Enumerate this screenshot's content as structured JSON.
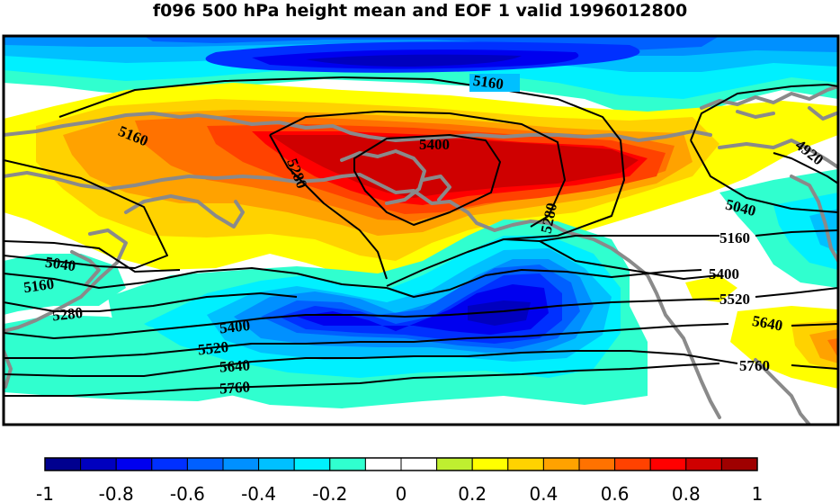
{
  "title": "f096 500 hPa height mean and EOF 1 valid 1996012800",
  "contour_labels": [
    "5160",
    "5160",
    "5280",
    "5400",
    "5280",
    "4920",
    "5040",
    "5160",
    "5040",
    "5160",
    "5280",
    "5400",
    "5520",
    "5640",
    "5760",
    "5400",
    "5520",
    "5640",
    "5760"
  ],
  "colorbar": {
    "ticks": [
      "-1",
      "-0.8",
      "-0.6",
      "-0.4",
      "-0.2",
      "0",
      "0.2",
      "0.4",
      "0.6",
      "0.8",
      "1"
    ],
    "colors": [
      "#00008f",
      "#0000bf",
      "#0000ef",
      "#0030ff",
      "#0060ff",
      "#0090ff",
      "#00c0ff",
      "#00f0ff",
      "#30ffcf",
      "#ffffff",
      "#ffffff",
      "#bfef30",
      "#ffff00",
      "#ffd200",
      "#ffa200",
      "#ff7200",
      "#ff4200",
      "#ff0000",
      "#cf0000",
      "#9f0000"
    ]
  },
  "legend_colors": {
    "coastline": "#8a8a8a",
    "contour": "#000000"
  }
}
